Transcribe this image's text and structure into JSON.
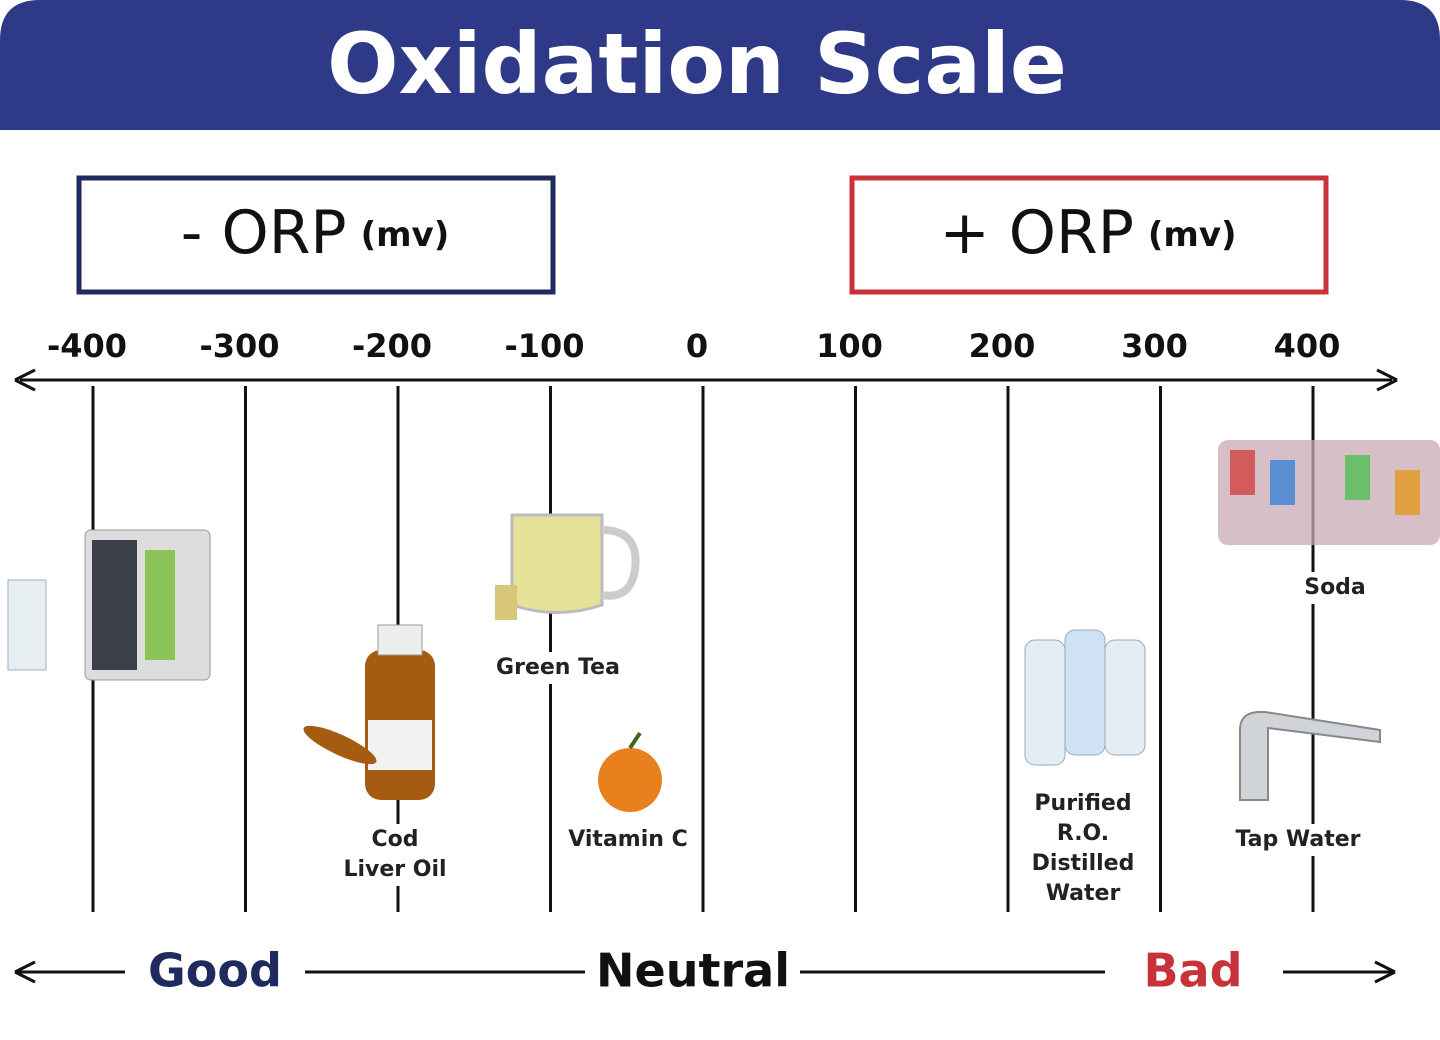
{
  "header": {
    "title": "Oxidation Scale"
  },
  "negative_box": {
    "sign": "- ORP",
    "unit": "(mv)"
  },
  "positive_box": {
    "sign": "+ ORP",
    "unit": "(mv)"
  },
  "scale": {
    "ticks": [
      -400,
      -300,
      -200,
      -100,
      0,
      100,
      200,
      300,
      400
    ]
  },
  "items": [
    {
      "lines": [
        "Soda"
      ]
    },
    {
      "lines": [
        "Tap Water"
      ]
    },
    {
      "lines": [
        "Purified",
        "R.O.",
        "Distilled",
        "Water"
      ]
    },
    {
      "lines": [
        "Vitamin C"
      ]
    },
    {
      "lines": [
        "Green Tea"
      ]
    },
    {
      "lines": [
        "Cod",
        "Liver Oil"
      ]
    }
  ],
  "footer": {
    "good": "Good",
    "neutral": "Neutral",
    "bad": "Bad"
  }
}
